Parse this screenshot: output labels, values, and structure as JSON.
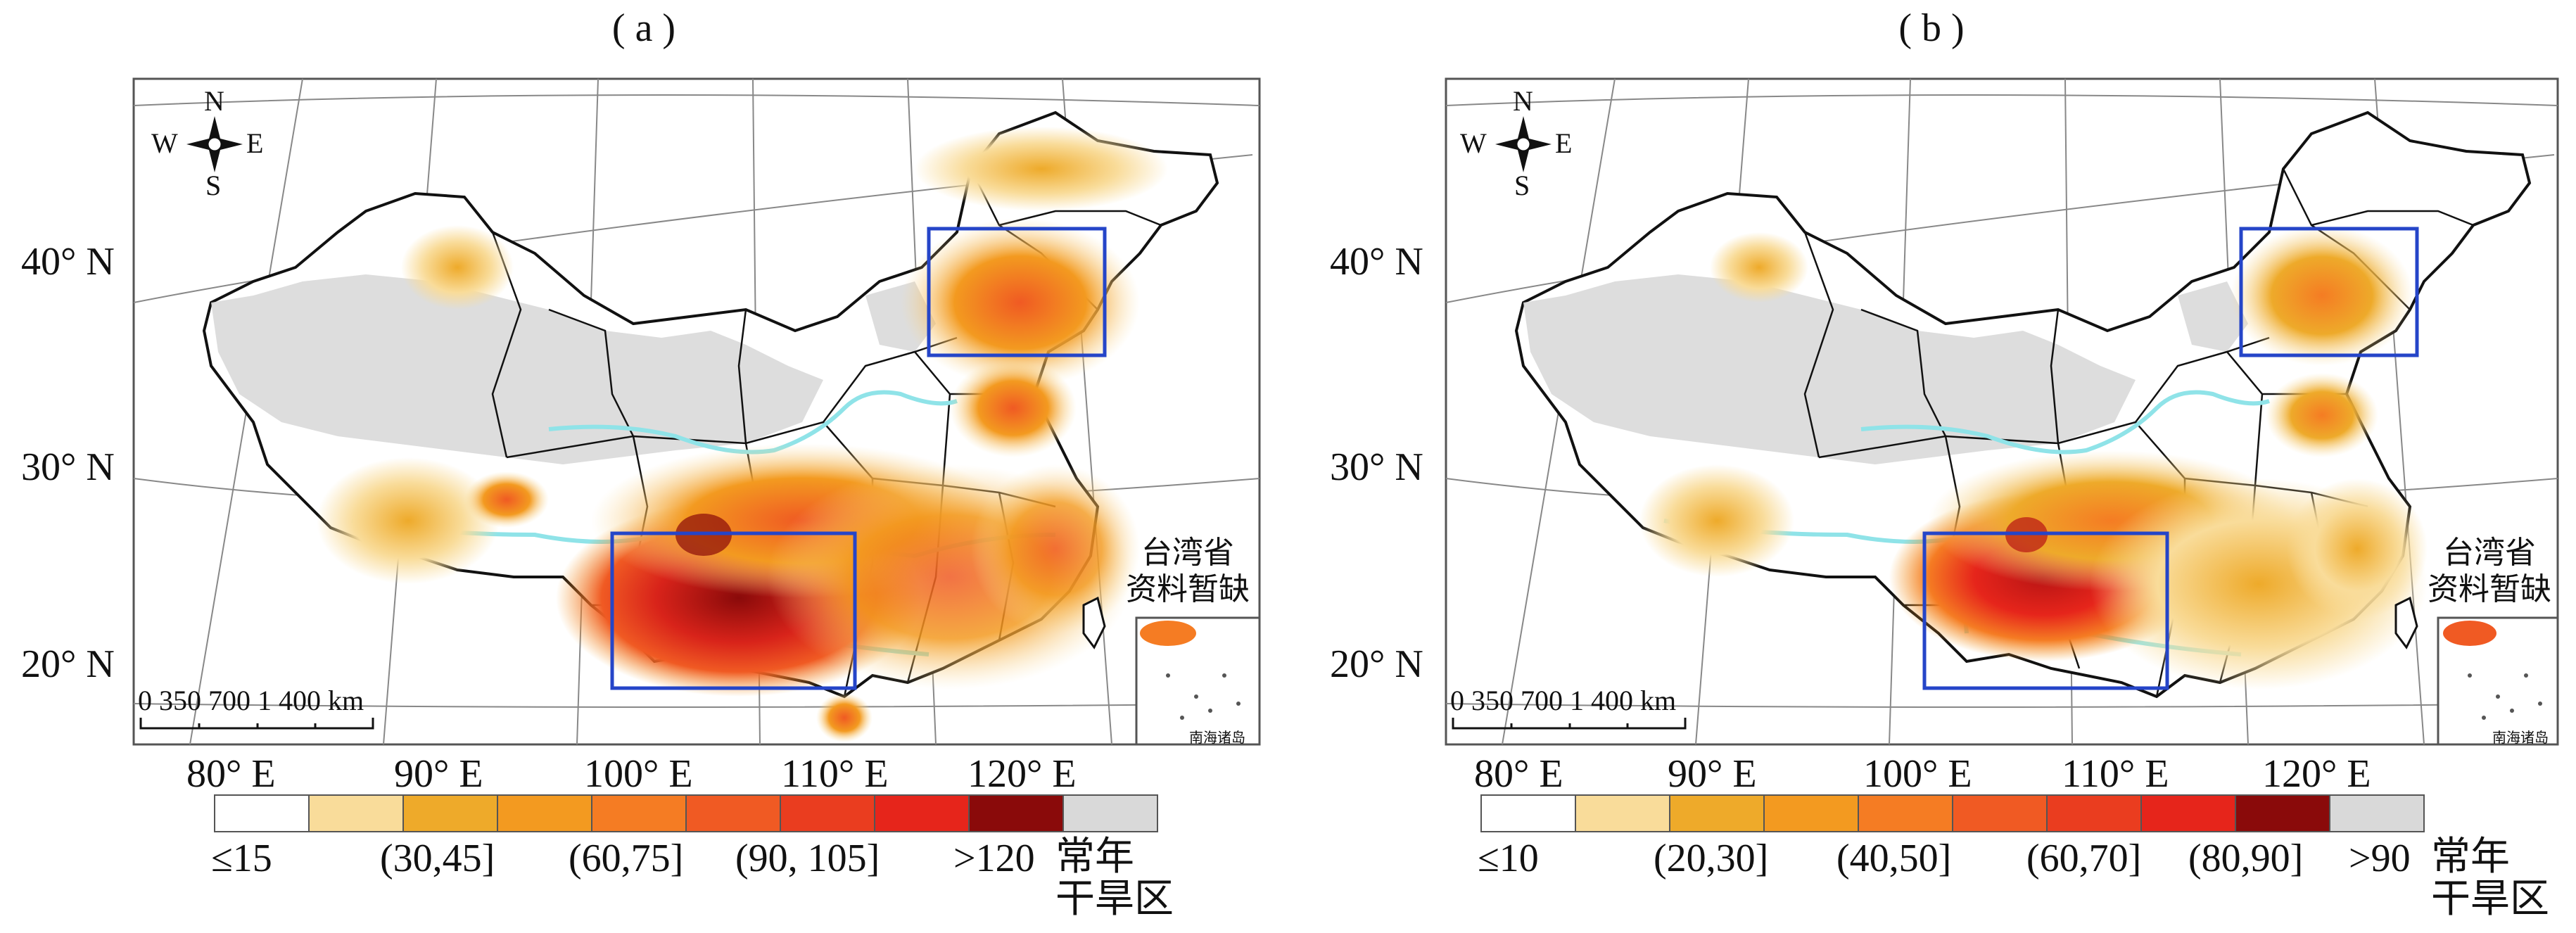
{
  "panels": [
    {
      "label": "( a )",
      "latitudes": [
        "40° N",
        "30° N",
        "20° N"
      ],
      "longitudes": [
        "80° E",
        "90° E",
        "100° E",
        "110° E",
        "120° E"
      ],
      "legend_labels": [
        "≤15",
        "(30,45]",
        "(60,75]",
        "(90, 105]",
        ">120"
      ],
      "legend_colors": [
        "#ffffff",
        "#f9dc9a",
        "#eeaa2a",
        "#f39a20",
        "#f57c23",
        "#f05a23",
        "#ea3d1f",
        "#e6251b",
        "#8a0a0a",
        "#d9d9d9"
      ],
      "dry_zone_label": [
        "常年",
        "干旱区"
      ],
      "taiwan_note": [
        "台湾省",
        "资料暂缺"
      ],
      "scale_text": "0   350 700       1 400 km",
      "compass": {
        "n": "N",
        "s": "S",
        "e": "E",
        "w": "W"
      },
      "inset_label": "南海诸岛"
    },
    {
      "label": "( b )",
      "latitudes": [
        "40° N",
        "30° N",
        "20° N"
      ],
      "longitudes": [
        "80° E",
        "90° E",
        "100° E",
        "110° E",
        "120° E"
      ],
      "legend_labels": [
        "≤10",
        "(20,30]",
        "(40,50]",
        "(60,70]",
        "(80,90]",
        ">90"
      ],
      "legend_colors": [
        "#ffffff",
        "#f9dc9a",
        "#eeaa2a",
        "#f39a20",
        "#f57c23",
        "#f05a23",
        "#ea3d1f",
        "#e6251b",
        "#8a0a0a",
        "#d9d9d9"
      ],
      "dry_zone_label": [
        "常年",
        "干旱区"
      ],
      "taiwan_note": [
        "台湾省",
        "资料暂缺"
      ],
      "scale_text": "0   350 700       1 400 km",
      "compass": {
        "n": "N",
        "s": "S",
        "e": "E",
        "w": "W"
      },
      "inset_label": "南海诸岛"
    }
  ],
  "colors": {
    "box": "#2545c8",
    "river": "#8fe3e8",
    "dry": "#d9d9d9",
    "border": "#111111"
  }
}
